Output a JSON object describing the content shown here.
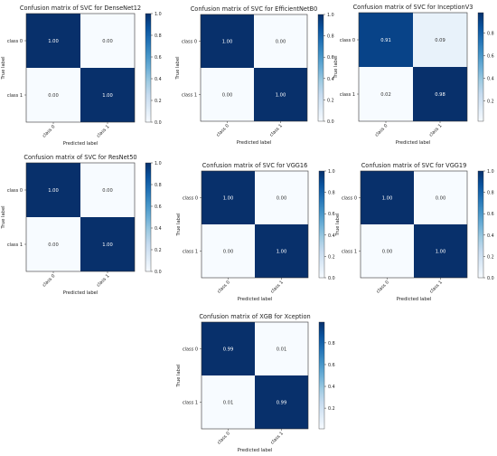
{
  "chart_data": [
    {
      "type": "heatmap",
      "title": "Confusion matrix of SVC for DenseNet12",
      "xlabel": "Predicted label",
      "ylabel": "True label",
      "x_tick_labels": [
        "class 0",
        "class 1"
      ],
      "y_tick_labels": [
        "class 0",
        "class 1"
      ],
      "values": [
        [
          1.0,
          0.0
        ],
        [
          0.0,
          1.0
        ]
      ],
      "cell_labels": [
        [
          "1.00",
          "0.00"
        ],
        [
          "0.00",
          "1.00"
        ]
      ],
      "colorbar": {
        "range": [
          0.0,
          1.0
        ],
        "ticks": [
          "0.0",
          "0.2",
          "0.4",
          "0.6",
          "0.8",
          "1.0"
        ]
      }
    },
    {
      "type": "heatmap",
      "title": "Confusion matrix of SVC for EfficientNetB0",
      "xlabel": "Predicted label",
      "ylabel": "True label",
      "x_tick_labels": [
        "class 0",
        "class 1"
      ],
      "y_tick_labels": [
        "class 0",
        "class 1"
      ],
      "values": [
        [
          1.0,
          0.0
        ],
        [
          0.0,
          1.0
        ]
      ],
      "cell_labels": [
        [
          "1.00",
          "0.00"
        ],
        [
          "0.00",
          "1.00"
        ]
      ],
      "colorbar": {
        "range": [
          0.0,
          1.0
        ],
        "ticks": [
          "0.0",
          "0.2",
          "0.4",
          "0.6",
          "0.8",
          "1.0"
        ]
      }
    },
    {
      "type": "heatmap",
      "title": "Confusion matrix of SVC for InceptionV3",
      "xlabel": "Predicted label",
      "ylabel": "True label",
      "x_tick_labels": [
        "class 0",
        "class 1"
      ],
      "y_tick_labels": [
        "class 0",
        "class 1"
      ],
      "values": [
        [
          0.91,
          0.09
        ],
        [
          0.02,
          0.98
        ]
      ],
      "cell_labels": [
        [
          "0.91",
          "0.09"
        ],
        [
          "0.02",
          "0.98"
        ]
      ],
      "colorbar": {
        "range": [
          0.02,
          0.98
        ],
        "ticks": [
          "0.2",
          "0.4",
          "0.6",
          "0.8"
        ]
      }
    },
    {
      "type": "heatmap",
      "title": "Confusion matrix of SVC for ResNet50",
      "xlabel": "Predicted label",
      "ylabel": "True label",
      "x_tick_labels": [
        "class 0",
        "class 1"
      ],
      "y_tick_labels": [
        "class 0",
        "class 1"
      ],
      "values": [
        [
          1.0,
          0.0
        ],
        [
          0.0,
          1.0
        ]
      ],
      "cell_labels": [
        [
          "1.00",
          "0.00"
        ],
        [
          "0.00",
          "1.00"
        ]
      ],
      "colorbar": {
        "range": [
          0.0,
          1.0
        ],
        "ticks": [
          "0.0",
          "0.2",
          "0.4",
          "0.6",
          "0.8",
          "1.0"
        ]
      }
    },
    {
      "type": "heatmap",
      "title": "Confusion matrix of SVC for VGG16",
      "xlabel": "Predicted label",
      "ylabel": "True label",
      "x_tick_labels": [
        "class 0",
        "class 1"
      ],
      "y_tick_labels": [
        "class 0",
        "class 1"
      ],
      "values": [
        [
          1.0,
          0.0
        ],
        [
          0.0,
          1.0
        ]
      ],
      "cell_labels": [
        [
          "1.00",
          "0.00"
        ],
        [
          "0.00",
          "1.00"
        ]
      ],
      "colorbar": {
        "range": [
          0.0,
          1.0
        ],
        "ticks": [
          "0.0",
          "0.2",
          "0.4",
          "0.6",
          "0.8",
          "1.0"
        ]
      }
    },
    {
      "type": "heatmap",
      "title": "Confusion matrix of SVC for VGG19",
      "xlabel": "Predicted label",
      "ylabel": "True label",
      "x_tick_labels": [
        "class 0",
        "class 1"
      ],
      "y_tick_labels": [
        "class 0",
        "class 1"
      ],
      "values": [
        [
          1.0,
          0.0
        ],
        [
          0.0,
          1.0
        ]
      ],
      "cell_labels": [
        [
          "1.00",
          "0.00"
        ],
        [
          "0.00",
          "1.00"
        ]
      ],
      "colorbar": {
        "range": [
          0.0,
          1.0
        ],
        "ticks": [
          "0.0",
          "0.2",
          "0.4",
          "0.6",
          "0.8",
          "1.0"
        ]
      }
    },
    {
      "type": "heatmap",
      "title": "Confusion matrix of XGB for Xception",
      "xlabel": "Predicted label",
      "ylabel": "True label",
      "x_tick_labels": [
        "class 0",
        "class 1"
      ],
      "y_tick_labels": [
        "class 0",
        "class 1"
      ],
      "values": [
        [
          0.99,
          0.01
        ],
        [
          0.01,
          0.99
        ]
      ],
      "cell_labels": [
        [
          "0.99",
          "0.01"
        ],
        [
          "0.01",
          "0.99"
        ]
      ],
      "colorbar": {
        "range": [
          0.01,
          0.99
        ],
        "ticks": [
          "0.2",
          "0.4",
          "0.6",
          "0.8"
        ]
      }
    }
  ],
  "colors": {
    "colormap": [
      "#f7fbff",
      "#deebf7",
      "#c6dbef",
      "#9ecae1",
      "#6baed6",
      "#4292c6",
      "#2171b5",
      "#08519c",
      "#08306b"
    ],
    "text_on_dark": "#ffffff",
    "text_on_light": "#333333",
    "axis": "#333333"
  }
}
